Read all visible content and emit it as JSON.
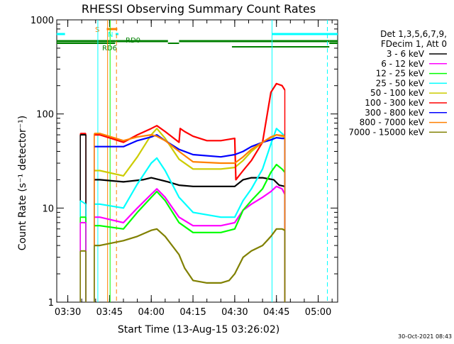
{
  "chart_data": {
    "type": "line",
    "title": "RHESSI Observing Summary Count Rates",
    "xlabel": "Start Time (13-Aug-15 03:26:02)",
    "ylabel": "Count Rate (s⁻¹ detector⁻¹)",
    "y_scale": "log",
    "ylim": [
      1,
      1000
    ],
    "y_ticks": [
      1,
      10,
      100,
      1000
    ],
    "y_tick_labels": [
      "1",
      "10",
      "100",
      "1000"
    ],
    "x_tick_labels": [
      "03:30",
      "03:45",
      "04:00",
      "04:15",
      "04:30",
      "04:45",
      "05:00"
    ],
    "x_ticks_min": [
      30,
      45,
      60,
      75,
      90,
      105,
      120
    ],
    "xlim_min": [
      26.03,
      127
    ],
    "legend": {
      "placement": "right",
      "header": [
        "Det 1,3,5,6,7,9,",
        "FDecim 1, Att 0"
      ]
    },
    "series": [
      {
        "name": "3 - 6 keV",
        "color": "#000000",
        "x": [
          39.5,
          41.5,
          50,
          57,
          60,
          63,
          66,
          70,
          75,
          85,
          90,
          93,
          96,
          100,
          104,
          106,
          108
        ],
        "y": [
          20,
          20,
          19,
          20,
          21,
          20,
          19,
          17.5,
          17,
          17,
          17,
          20,
          21,
          21,
          20,
          17.5,
          17
        ]
      },
      {
        "name": "6 - 12 keV",
        "color": "#ff00ff",
        "x": [
          39.5,
          41.5,
          50,
          55,
          60,
          62,
          65,
          70,
          75,
          85,
          90,
          93,
          96,
          100,
          103,
          105,
          107,
          108
        ],
        "y": [
          8,
          8,
          7,
          10,
          14,
          16,
          13,
          8,
          6.5,
          6.5,
          7,
          9.5,
          11,
          13,
          15,
          17,
          16,
          14
        ]
      },
      {
        "name": "12 - 25 keV",
        "color": "#00ff00",
        "x": [
          39.5,
          41.5,
          50,
          55,
          60,
          62,
          65,
          70,
          75,
          85,
          90,
          93,
          96,
          100,
          103,
          105,
          107,
          108
        ],
        "y": [
          6.5,
          6.5,
          6,
          9,
          13,
          15,
          12,
          7,
          5.5,
          5.5,
          6,
          9.5,
          12,
          16,
          24,
          29,
          26,
          24
        ]
      },
      {
        "name": "25 - 50 keV",
        "color": "#00ffff",
        "x": [
          39.5,
          41.5,
          50,
          55,
          60,
          62,
          65,
          70,
          75,
          85,
          90,
          93,
          96,
          100,
          103,
          105,
          107,
          108
        ],
        "y": [
          11,
          11,
          10,
          18,
          30,
          34,
          25,
          13,
          9,
          8,
          8,
          12,
          16,
          26,
          48,
          70,
          62,
          58
        ]
      },
      {
        "name": "50 - 100 keV",
        "color": "#cccc00",
        "x": [
          39.5,
          41.5,
          50,
          55,
          60,
          62,
          65,
          70,
          75,
          85,
          90,
          93,
          96,
          100,
          103,
          105,
          107,
          108
        ],
        "y": [
          25,
          25,
          22,
          35,
          60,
          70,
          55,
          33,
          26,
          26,
          27,
          32,
          40,
          50,
          56,
          60,
          58,
          57
        ]
      },
      {
        "name": "100 - 300 keV",
        "color": "#ff0000",
        "x": [
          39.5,
          41.5,
          50,
          55,
          60,
          62,
          65,
          70,
          70.4,
          72,
          75,
          80,
          85,
          90,
          90.4,
          93,
          96,
          100,
          103,
          105,
          107,
          108
        ],
        "y": [
          60,
          60,
          50,
          60,
          70,
          75,
          65,
          50,
          70,
          65,
          58,
          52,
          52,
          55,
          20,
          25,
          32,
          50,
          170,
          210,
          200,
          180
        ]
      },
      {
        "name": "300 - 800 keV",
        "color": "#0000ff",
        "x": [
          39.5,
          41.5,
          50,
          55,
          60,
          62,
          65,
          70,
          75,
          85,
          90,
          93,
          96,
          100,
          103,
          105,
          107,
          108
        ],
        "y": [
          45,
          45,
          45,
          52,
          57,
          60,
          52,
          42,
          37,
          35,
          37,
          40,
          45,
          50,
          53,
          56,
          55,
          55
        ]
      },
      {
        "name": "800 - 7000 keV",
        "color": "#ff8000",
        "x": [
          39.5,
          41.5,
          50,
          55,
          60,
          62,
          65,
          70,
          75,
          85,
          90,
          93,
          96,
          100,
          103,
          105,
          107,
          108
        ],
        "y": [
          62,
          62,
          52,
          57,
          60,
          58,
          52,
          40,
          31,
          30,
          30,
          35,
          42,
          50,
          57,
          60,
          59,
          58
        ]
      },
      {
        "name": "7000 - 15000 keV",
        "color": "#808000",
        "x": [
          39.5,
          41.5,
          50,
          55,
          60,
          62,
          65,
          70,
          72,
          75,
          80,
          85,
          88,
          90,
          93,
          96,
          100,
          103,
          105,
          107,
          108
        ],
        "y": [
          4,
          4,
          4.5,
          5,
          5.8,
          6,
          5,
          3.2,
          2.3,
          1.7,
          1.6,
          1.6,
          1.7,
          2,
          3,
          3.5,
          4,
          5,
          6,
          6,
          5.8
        ]
      }
    ],
    "annotations": {
      "rd_flag": {
        "color": "#008000",
        "labels": [
          "RD0",
          "RD6"
        ],
        "segments_min": [
          [
            26,
            47
          ],
          [
            47,
            66
          ],
          [
            70,
            89
          ],
          [
            89,
            124
          ],
          [
            124,
            127
          ]
        ]
      },
      "s_flag": {
        "color": "#ff8000",
        "label": "S",
        "x_min": [
          44,
          47.8
        ]
      },
      "n_flag": {
        "color": "#00ffff",
        "label": "N"
      },
      "cyan_bars_min": [
        [
          26,
          29
        ],
        [
          47.2,
          48.2
        ],
        [
          103.4,
          127
        ]
      ],
      "vertical_lines": [
        {
          "x_min": 40.8,
          "style": "solid",
          "color": "#00ffff"
        },
        {
          "x_min": 44.3,
          "style": "solid",
          "color": "#ff8000"
        },
        {
          "x_min": 45.2,
          "style": "solid",
          "color": "#00ff00"
        },
        {
          "x_min": 47.5,
          "style": "dashed",
          "color": "#ff8000"
        },
        {
          "x_min": 103.4,
          "style": "solid",
          "color": "#00ffff"
        },
        {
          "x_min": 123.3,
          "style": "dashed",
          "color": "#00ffff"
        }
      ]
    }
  },
  "footer": {
    "timestamp": "30-Oct-2021 08:43"
  }
}
